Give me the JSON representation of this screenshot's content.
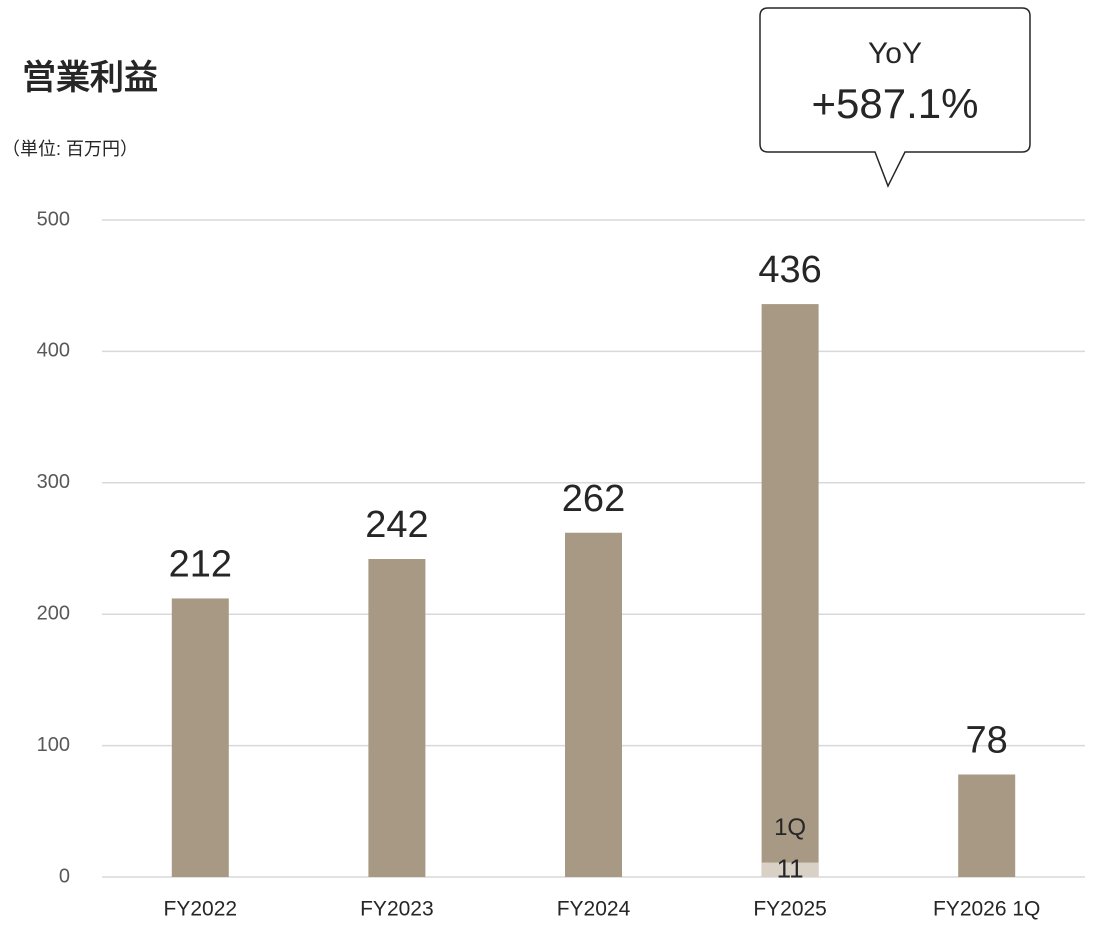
{
  "chart_data": {
    "type": "bar",
    "title": "営業利益",
    "subtitle": "（単位: 百万円）",
    "categories": [
      "FY2022",
      "FY2023",
      "FY2024",
      "FY2025",
      "FY2026 1Q"
    ],
    "values": [
      212,
      242,
      262,
      436,
      78
    ],
    "color": "#a89984",
    "overlay": {
      "name": "1Q",
      "values": [
        null,
        null,
        null,
        11,
        null
      ],
      "color": "#d9d0c6"
    },
    "ylim": [
      0,
      500
    ],
    "yticks": [
      0,
      100,
      200,
      300,
      400,
      500
    ],
    "grid": true,
    "annotation": {
      "title": "YoY",
      "text": "+587.1%"
    }
  }
}
